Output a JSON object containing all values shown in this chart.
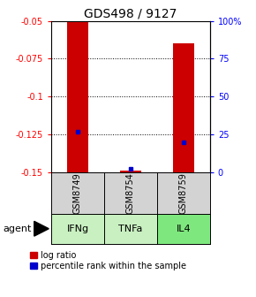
{
  "title": "GDS498 / 9127",
  "samples": [
    "GSM8749",
    "GSM8754",
    "GSM8759"
  ],
  "agents": [
    "IFNg",
    "TNFa",
    "IL4"
  ],
  "agent_colors": [
    "#c8f0c0",
    "#c8f0c0",
    "#7ee87e"
  ],
  "ymin": -0.15,
  "ymax": -0.05,
  "yticks_left": [
    -0.05,
    -0.075,
    -0.1,
    -0.125,
    -0.15
  ],
  "yticks_right": [
    100,
    75,
    50,
    25,
    0
  ],
  "log_ratios": [
    -0.051,
    -0.149,
    -0.065
  ],
  "percentile_ranks": [
    27,
    2,
    20
  ],
  "bar_color": "#cc0000",
  "dot_color": "#0000cc",
  "bar_width": 0.4,
  "legend_log_label": "log ratio",
  "legend_pct_label": "percentile rank within the sample",
  "background_color": "#ffffff",
  "plot_bg_color": "#ffffff",
  "sample_bg_color": "#d3d3d3",
  "title_fontsize": 10,
  "tick_fontsize": 7,
  "sample_fontsize": 7,
  "agent_fontsize": 8,
  "legend_fontsize": 7
}
